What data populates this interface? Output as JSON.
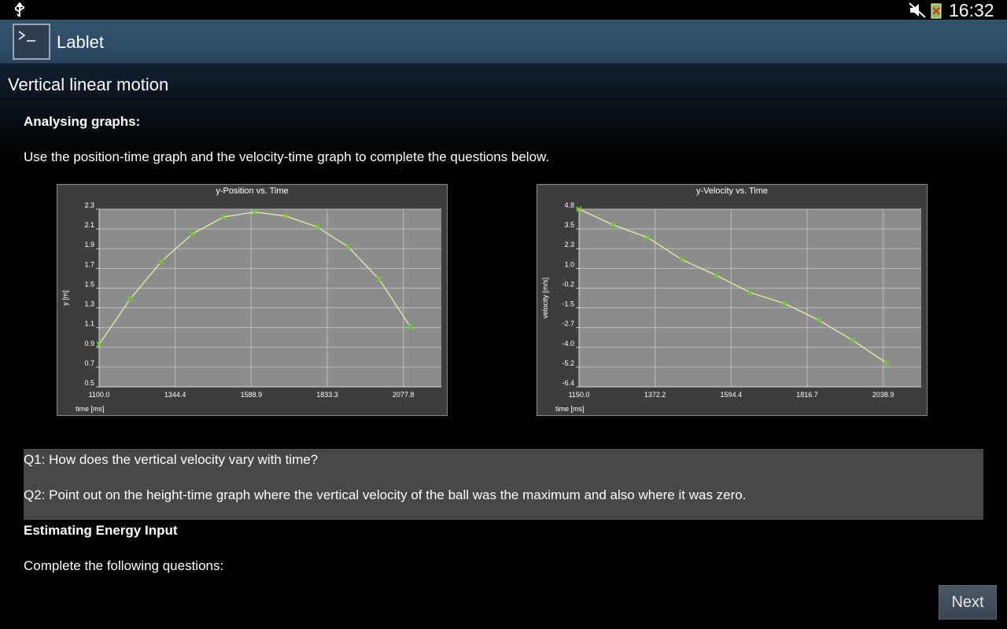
{
  "status_bar": {
    "time": "16:32"
  },
  "app_bar": {
    "title": "Lablet"
  },
  "content": {
    "heading": "Vertical linear motion",
    "section_1": "Analysing graphs:",
    "instruction_1": "Use the position-time graph and the velocity-time graph to complete the questions below.",
    "questions": [
      "Q1: How does the vertical velocity vary with time?",
      "Q2: Point out on the height-time graph where the vertical velocity of the ball was the maximum and also where it was zero."
    ],
    "section_2": "Estimating Energy Input",
    "instruction_2": "Complete the following questions:",
    "next_button": "Next"
  },
  "chart_data": [
    {
      "type": "line",
      "title": "y-Position vs. Time",
      "x_label": "time [ms]",
      "y_label": "y [m]",
      "x": [
        1100,
        1200,
        1300,
        1400,
        1500,
        1600,
        1700,
        1800,
        1900,
        2000,
        2100
      ],
      "values": [
        0.93,
        1.39,
        1.77,
        2.05,
        2.22,
        2.27,
        2.23,
        2.12,
        1.92,
        1.59,
        1.11
      ],
      "color": "#e6efa0",
      "marker_color": "#6fcf2a",
      "xlim": [
        1100,
        2200
      ],
      "xticks": [
        {
          "value": 1100,
          "label": "1100.0"
        },
        1344.4,
        1588.9,
        1833.3,
        2077.8
      ],
      "ylim": [
        0.5,
        2.3
      ],
      "yticks": [
        0.5,
        0.7,
        0.9,
        1.1,
        1.3,
        1.5,
        1.7,
        1.9,
        2.1,
        2.3
      ],
      "grid": true
    },
    {
      "type": "line",
      "title": "y-Velocity vs. Time",
      "x_label": "time [ms]",
      "y_label": "velocity [m/s]",
      "x": [
        1150,
        1250,
        1350,
        1450,
        1550,
        1650,
        1750,
        1850,
        1950,
        2050
      ],
      "values": [
        4.8,
        3.8,
        3.01,
        1.61,
        0.62,
        -0.48,
        -1.17,
        -2.22,
        -3.51,
        -4.96
      ],
      "color": "#e6efa0",
      "marker_color": "#6fcf2a",
      "xlim": [
        1150,
        2150
      ],
      "xticks": [
        {
          "value": 1150,
          "label": "1150.0"
        },
        1372.2,
        1594.4,
        1816.7,
        2038.9
      ],
      "ylim": [
        -6.45,
        4.8
      ],
      "yticks": [
        {
          "value": -6.45,
          "label": "-6.4"
        },
        -5.2,
        {
          "value": -3.95,
          "label": "-4.0"
        },
        -2.7,
        {
          "value": -1.45,
          "label": "-1.5"
        },
        -0.2,
        {
          "value": 1.05,
          "label": "1.0"
        },
        2.3,
        {
          "value": 3.55,
          "label": "3.5"
        },
        4.8
      ],
      "grid": true
    }
  ]
}
